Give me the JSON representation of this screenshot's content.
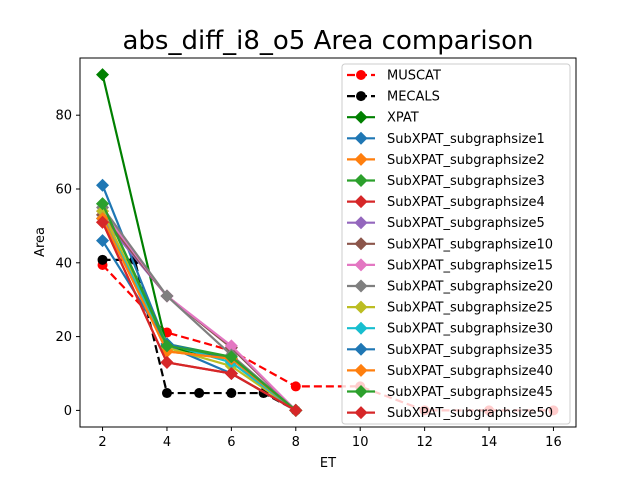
{
  "chart_data": {
    "type": "line",
    "title": "abs_diff_i8_o5 Area comparison",
    "xlabel": "ET",
    "ylabel": "Area",
    "xlim": [
      1.3,
      16.7
    ],
    "ylim": [
      -4.5,
      95.5
    ],
    "xticks": [
      2,
      4,
      6,
      8,
      10,
      12,
      14,
      16
    ],
    "yticks": [
      0,
      20,
      40,
      60,
      80
    ],
    "grid": false,
    "legend_position": "top-right",
    "series": [
      {
        "name": "MUSCAT",
        "color": "#ff0000",
        "marker": "circle",
        "dash": "dashed",
        "x": [
          2,
          4,
          6,
          8,
          10,
          12,
          14,
          16
        ],
        "y": [
          39.4,
          21.1,
          16.2,
          6.5,
          6.5,
          0,
          0,
          0
        ]
      },
      {
        "name": "MECALS",
        "color": "#000000",
        "marker": "circle",
        "dash": "dashed",
        "x": [
          2,
          3,
          4,
          5,
          6,
          7,
          8
        ],
        "y": [
          40.8,
          40.8,
          4.7,
          4.7,
          4.7,
          4.7,
          0
        ]
      },
      {
        "name": "XPAT",
        "color": "#008000",
        "marker": "diamond",
        "dash": "solid",
        "x": [
          2,
          4,
          6,
          8
        ],
        "y": [
          91,
          17,
          14,
          0
        ]
      },
      {
        "name": "SubXPAT_subgraphsize1",
        "color": "#1f77b4",
        "marker": "diamond",
        "dash": "solid",
        "x": [
          2,
          4,
          6,
          8
        ],
        "y": [
          61,
          17.5,
          10,
          0
        ]
      },
      {
        "name": "SubXPAT_subgraphsize2",
        "color": "#ff7f0e",
        "marker": "diamond",
        "dash": "solid",
        "x": [
          2,
          4,
          6,
          8
        ],
        "y": [
          53,
          16,
          14,
          0
        ]
      },
      {
        "name": "SubXPAT_subgraphsize3",
        "color": "#2ca02c",
        "marker": "diamond",
        "dash": "solid",
        "x": [
          2,
          4,
          6,
          8
        ],
        "y": [
          56,
          18,
          14.5,
          0
        ]
      },
      {
        "name": "SubXPAT_subgraphsize4",
        "color": "#d62728",
        "marker": "diamond",
        "dash": "solid",
        "x": [
          2,
          4,
          6,
          8
        ],
        "y": [
          51,
          13,
          10,
          0
        ]
      },
      {
        "name": "SubXPAT_subgraphsize5",
        "color": "#9467bd",
        "marker": "diamond",
        "dash": "solid",
        "x": [
          2,
          4,
          6,
          8
        ],
        "y": [
          52,
          31,
          17,
          0
        ]
      },
      {
        "name": "SubXPAT_subgraphsize10",
        "color": "#8c564b",
        "marker": "diamond",
        "dash": "solid",
        "x": [
          2,
          4,
          6,
          8
        ],
        "y": [
          53,
          31,
          17,
          0
        ]
      },
      {
        "name": "SubXPAT_subgraphsize15",
        "color": "#e377c2",
        "marker": "diamond",
        "dash": "solid",
        "x": [
          2,
          4,
          6,
          8
        ],
        "y": [
          54,
          31,
          17.5,
          0
        ]
      },
      {
        "name": "SubXPAT_subgraphsize20",
        "color": "#7f7f7f",
        "marker": "diamond",
        "dash": "solid",
        "x": [
          2,
          4,
          6,
          8
        ],
        "y": [
          55,
          31,
          15,
          0
        ]
      },
      {
        "name": "SubXPAT_subgraphsize25",
        "color": "#bcbd22",
        "marker": "diamond",
        "dash": "solid",
        "x": [
          2,
          4,
          6,
          8
        ],
        "y": [
          54,
          17,
          12,
          0
        ]
      },
      {
        "name": "SubXPAT_subgraphsize30",
        "color": "#17becf",
        "marker": "diamond",
        "dash": "solid",
        "x": [
          2,
          4,
          6,
          8
        ],
        "y": [
          52,
          18,
          13,
          0
        ]
      },
      {
        "name": "SubXPAT_subgraphsize35",
        "color": "#1f77b4",
        "marker": "diamond",
        "dash": "solid",
        "x": [
          2,
          4,
          6,
          8
        ],
        "y": [
          46,
          18,
          14,
          0
        ]
      },
      {
        "name": "SubXPAT_subgraphsize40",
        "color": "#ff7f0e",
        "marker": "diamond",
        "dash": "solid",
        "x": [
          2,
          4,
          6,
          8
        ],
        "y": [
          52,
          16,
          14,
          0
        ]
      },
      {
        "name": "SubXPAT_subgraphsize45",
        "color": "#2ca02c",
        "marker": "diamond",
        "dash": "solid",
        "x": [
          2,
          4,
          6,
          8
        ],
        "y": [
          56,
          17.5,
          14.5,
          0
        ]
      },
      {
        "name": "SubXPAT_subgraphsize50",
        "color": "#d62728",
        "marker": "diamond",
        "dash": "solid",
        "x": [
          2,
          4,
          6,
          8
        ],
        "y": [
          51,
          13,
          10,
          0
        ]
      }
    ]
  }
}
